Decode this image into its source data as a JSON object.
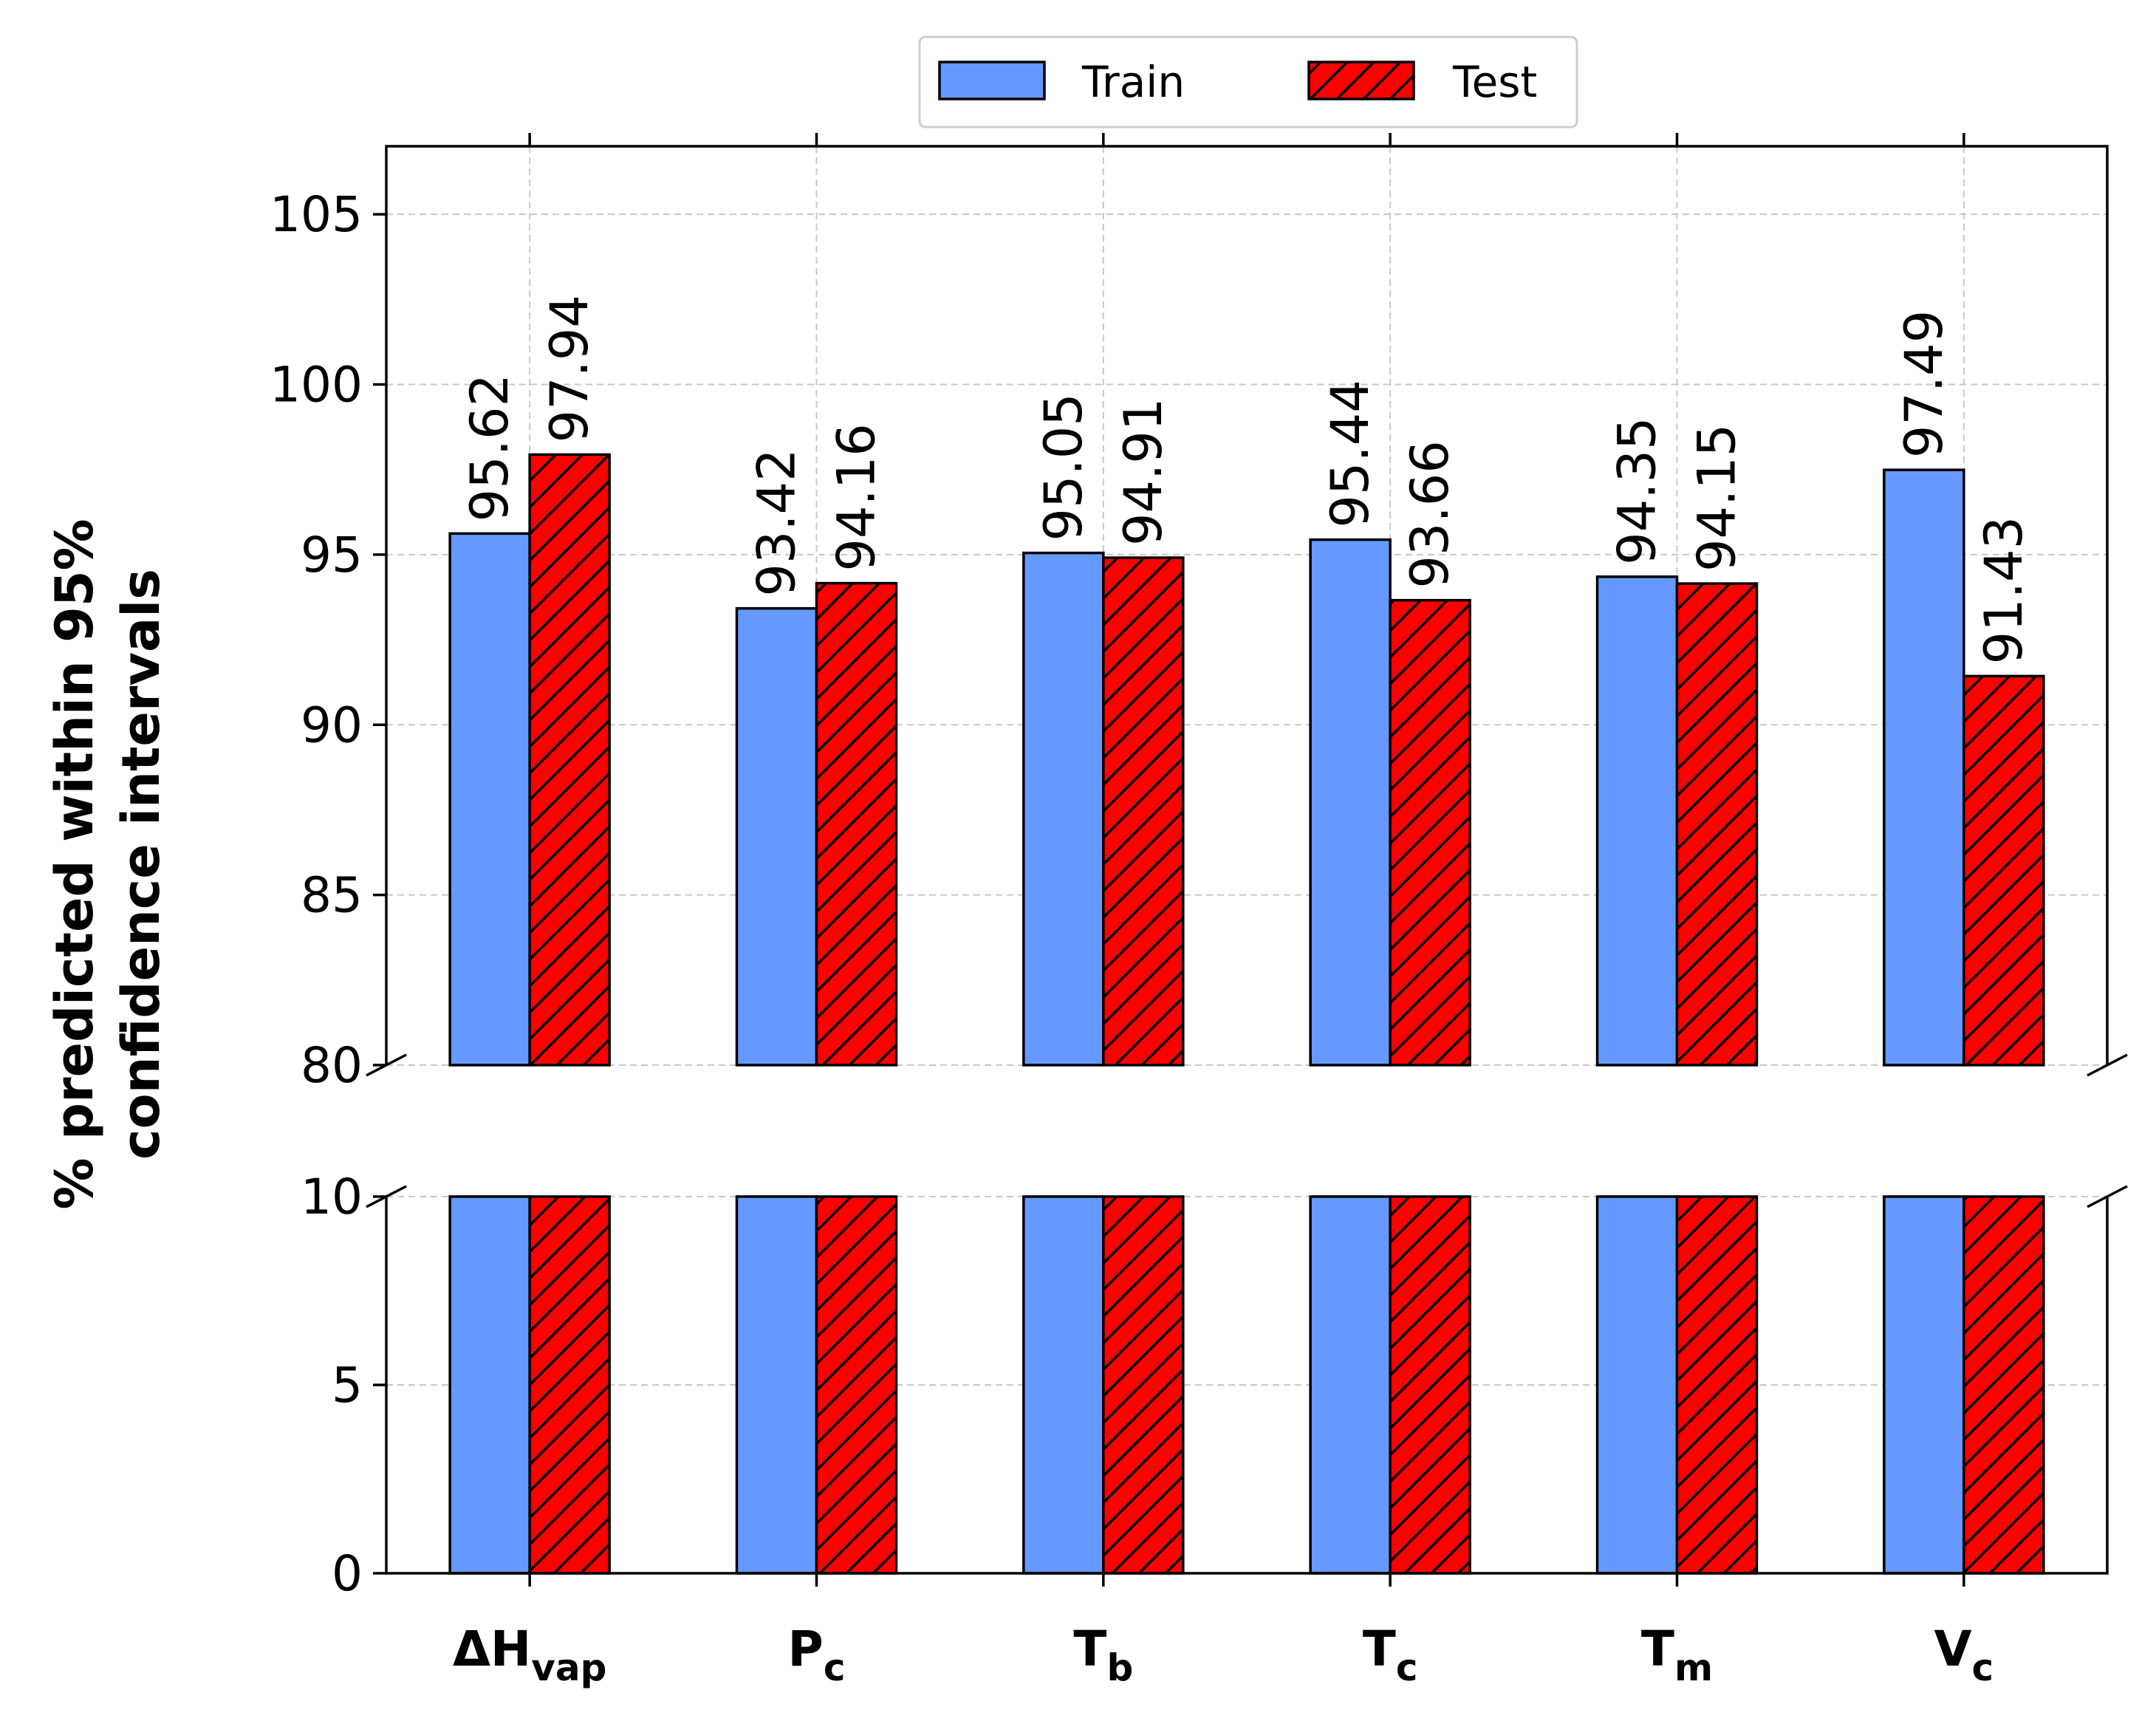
{
  "chart_data": {
    "type": "bar",
    "categories": [
      {
        "base": "ΔH",
        "sub": "vap"
      },
      {
        "base": "P",
        "sub": "c"
      },
      {
        "base": "T",
        "sub": "b"
      },
      {
        "base": "T",
        "sub": "c"
      },
      {
        "base": "T",
        "sub": "m"
      },
      {
        "base": "V",
        "sub": "c"
      }
    ],
    "series": [
      {
        "name": "Train",
        "color": "#6699ff",
        "hatch": "none",
        "values": [
          95.62,
          93.42,
          95.05,
          95.44,
          94.35,
          97.49
        ]
      },
      {
        "name": "Test",
        "color": "#ff0000",
        "hatch": "diagonal",
        "values": [
          97.94,
          94.16,
          94.91,
          93.66,
          94.15,
          91.43
        ]
      }
    ],
    "value_labels": [
      [
        "95.62",
        "93.42",
        "95.05",
        "95.44",
        "94.35",
        "97.49"
      ],
      [
        "97.94",
        "94.16",
        "94.91",
        "93.66",
        "94.15",
        "91.43"
      ]
    ],
    "ylabel_lines": [
      "% predicted within 95%",
      "confidence intervals"
    ],
    "broken_axis": true,
    "upper_ylim": [
      80,
      107
    ],
    "lower_ylim": [
      0,
      10
    ],
    "upper_ticks": [
      "80",
      "85",
      "90",
      "95",
      "100",
      "105"
    ],
    "lower_ticks": [
      "0",
      "5",
      "10"
    ],
    "legend_position": "top-center, above plot",
    "grid": true
  }
}
